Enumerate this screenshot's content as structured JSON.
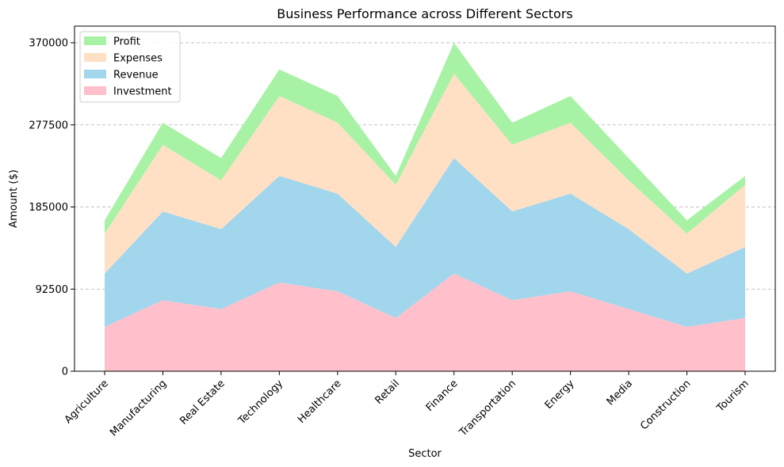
{
  "chart_data": {
    "type": "area",
    "stacked": true,
    "title": "Business Performance across Different Sectors",
    "xlabel": "Sector",
    "ylabel": "Amount ($)",
    "categories": [
      "Agriculture",
      "Manufacturing",
      "Real Estate",
      "Technology",
      "Healthcare",
      "Retail",
      "Finance",
      "Transportation",
      "Energy",
      "Media",
      "Construction",
      "Tourism"
    ],
    "ylim": [
      0,
      370000
    ],
    "yticks": [
      0,
      92500,
      185000,
      277500,
      370000
    ],
    "ytick_labels": [
      "0",
      "92500",
      "185000",
      "277500",
      "370000"
    ],
    "grid": "horizontal-dashed",
    "legend_position": "top-left",
    "series": [
      {
        "name": "Investment",
        "color": "#ffc0cb",
        "values": [
          50000,
          80000,
          70000,
          100000,
          90000,
          60000,
          110000,
          80000,
          90000,
          70000,
          50000,
          60000
        ]
      },
      {
        "name": "Revenue",
        "color": "#a1d6ed",
        "values": [
          60000,
          100000,
          90000,
          120000,
          110000,
          80000,
          130000,
          100000,
          110000,
          90000,
          60000,
          80000
        ]
      },
      {
        "name": "Expenses",
        "color": "#ffe0c5",
        "values": [
          45000,
          75000,
          55000,
          90000,
          80000,
          70000,
          95000,
          75000,
          80000,
          55000,
          45000,
          70000
        ]
      },
      {
        "name": "Profit",
        "color": "#a8f2a5",
        "values": [
          15000,
          25000,
          25000,
          30000,
          30000,
          10000,
          35000,
          25000,
          30000,
          25000,
          15000,
          10000
        ]
      }
    ]
  }
}
